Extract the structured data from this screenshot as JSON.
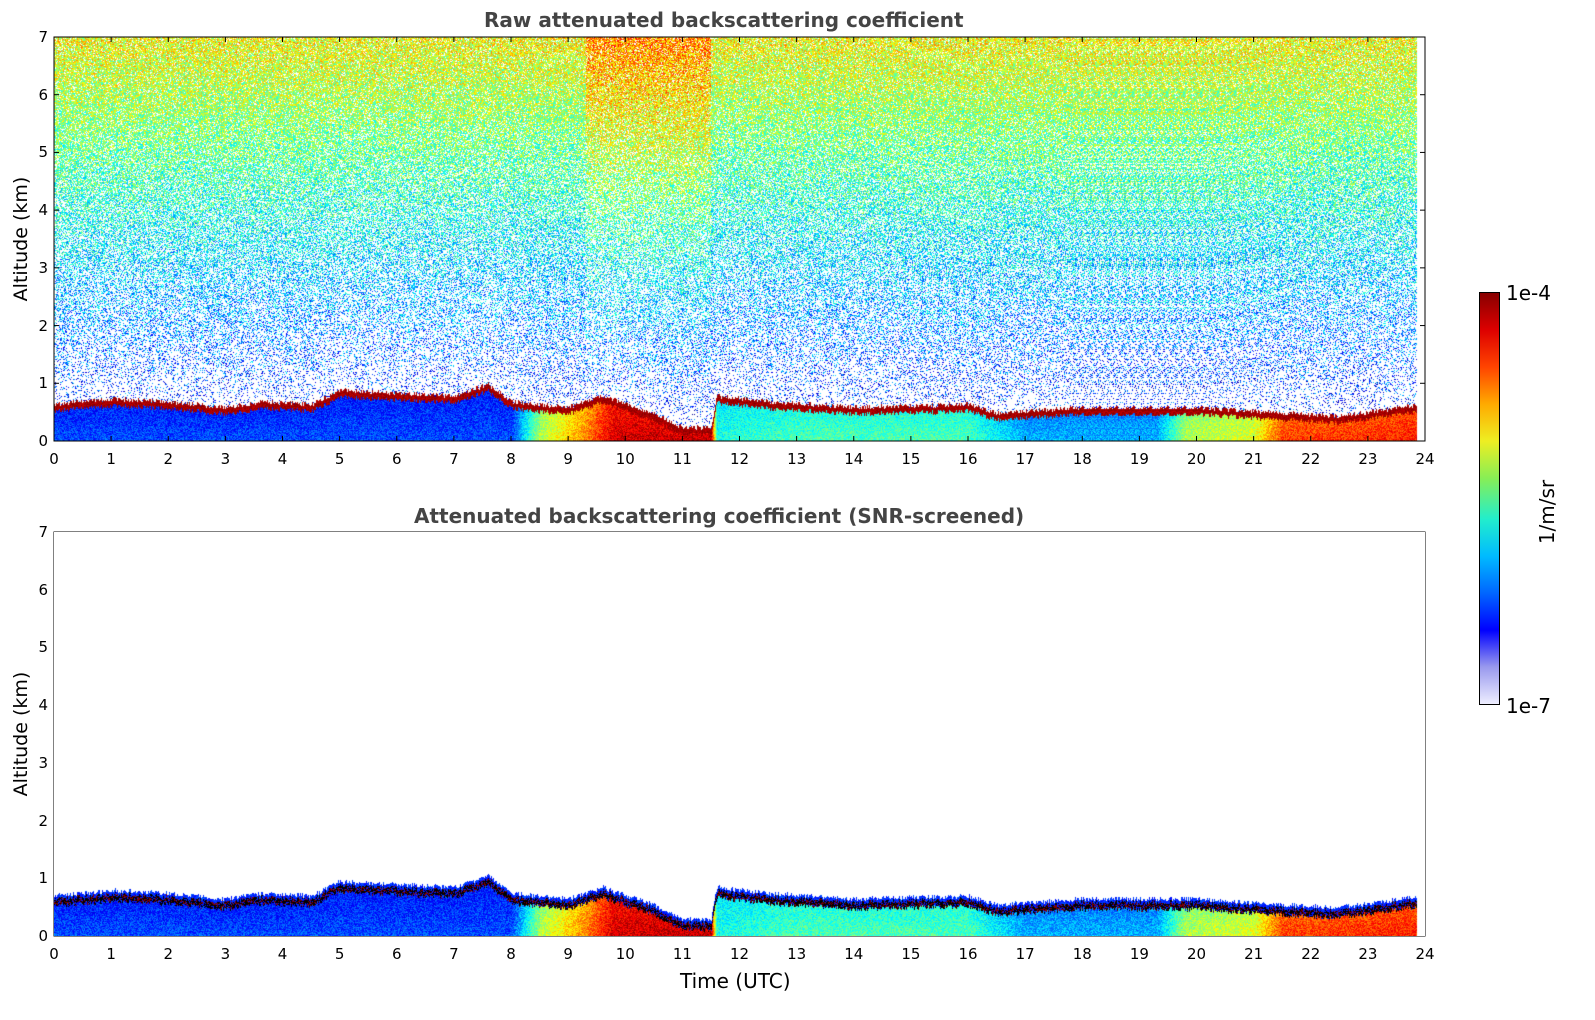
{
  "chart_data": [
    {
      "type": "heatmap",
      "title": "Raw attenuated backscattering coefficient",
      "xlabel": "",
      "ylabel": "Altitude (km)",
      "xlim": [
        0,
        24
      ],
      "ylim": [
        0,
        7
      ],
      "xticks": [
        "0",
        "1",
        "2",
        "3",
        "4",
        "5",
        "6",
        "7",
        "8",
        "9",
        "10",
        "11",
        "12",
        "13",
        "14",
        "15",
        "16",
        "17",
        "18",
        "19",
        "20",
        "21",
        "22",
        "23",
        "24"
      ],
      "yticks": [
        "0",
        "1",
        "2",
        "3",
        "4",
        "5",
        "6",
        "7"
      ],
      "noise": "high",
      "layer_top_km": [
        {
          "t": 0,
          "z": 0.6
        },
        {
          "t": 1,
          "z": 0.7
        },
        {
          "t": 2,
          "z": 0.65
        },
        {
          "t": 3,
          "z": 0.55
        },
        {
          "t": 3.7,
          "z": 0.65
        },
        {
          "t": 4.5,
          "z": 0.6
        },
        {
          "t": 5,
          "z": 0.85
        },
        {
          "t": 6,
          "z": 0.8
        },
        {
          "t": 7,
          "z": 0.75
        },
        {
          "t": 7.6,
          "z": 0.95
        },
        {
          "t": 8,
          "z": 0.65
        },
        {
          "t": 9,
          "z": 0.55
        },
        {
          "t": 9.6,
          "z": 0.75
        },
        {
          "t": 10.5,
          "z": 0.45
        },
        {
          "t": 11,
          "z": 0.2
        },
        {
          "t": 11.5,
          "z": 0.2
        },
        {
          "t": 11.6,
          "z": 0.75
        },
        {
          "t": 12.5,
          "z": 0.65
        },
        {
          "t": 14,
          "z": 0.55
        },
        {
          "t": 16,
          "z": 0.6
        },
        {
          "t": 16.5,
          "z": 0.45
        },
        {
          "t": 18,
          "z": 0.55
        },
        {
          "t": 20,
          "z": 0.55
        },
        {
          "t": 21.5,
          "z": 0.45
        },
        {
          "t": 22.5,
          "z": 0.4
        },
        {
          "t": 23.9,
          "z": 0.6
        }
      ],
      "surface_intensity": [
        {
          "t": 0,
          "v": 0.2
        },
        {
          "t": 8,
          "v": 0.2
        },
        {
          "t": 8.5,
          "v": 0.55
        },
        {
          "t": 9.3,
          "v": 0.75
        },
        {
          "t": 9.8,
          "v": 0.92
        },
        {
          "t": 11.5,
          "v": 0.95
        },
        {
          "t": 11.6,
          "v": 0.4
        },
        {
          "t": 13,
          "v": 0.45
        },
        {
          "t": 16,
          "v": 0.45
        },
        {
          "t": 17,
          "v": 0.3
        },
        {
          "t": 19.3,
          "v": 0.3
        },
        {
          "t": 19.8,
          "v": 0.55
        },
        {
          "t": 21,
          "v": 0.6
        },
        {
          "t": 21.5,
          "v": 0.82
        },
        {
          "t": 23.9,
          "v": 0.85
        }
      ]
    },
    {
      "type": "heatmap",
      "title": "Attenuated backscattering coefficient (SNR-screened)",
      "xlabel": "Time (UTC)",
      "ylabel": "Altitude (km)",
      "xlim": [
        0,
        24
      ],
      "ylim": [
        0,
        7
      ],
      "xticks": [
        "0",
        "1",
        "2",
        "3",
        "4",
        "5",
        "6",
        "7",
        "8",
        "9",
        "10",
        "11",
        "12",
        "13",
        "14",
        "15",
        "16",
        "17",
        "18",
        "19",
        "20",
        "21",
        "22",
        "23",
        "24"
      ],
      "yticks": [
        "0",
        "1",
        "2",
        "3",
        "4",
        "5",
        "6",
        "7"
      ],
      "noise": "screened",
      "layer_top_km": [
        {
          "t": 0,
          "z": 0.6
        },
        {
          "t": 1,
          "z": 0.7
        },
        {
          "t": 2,
          "z": 0.65
        },
        {
          "t": 3,
          "z": 0.55
        },
        {
          "t": 3.7,
          "z": 0.65
        },
        {
          "t": 4.5,
          "z": 0.6
        },
        {
          "t": 5,
          "z": 0.85
        },
        {
          "t": 6,
          "z": 0.8
        },
        {
          "t": 7,
          "z": 0.75
        },
        {
          "t": 7.6,
          "z": 0.95
        },
        {
          "t": 8,
          "z": 0.65
        },
        {
          "t": 9,
          "z": 0.55
        },
        {
          "t": 9.6,
          "z": 0.75
        },
        {
          "t": 10.5,
          "z": 0.45
        },
        {
          "t": 11,
          "z": 0.2
        },
        {
          "t": 11.5,
          "z": 0.2
        },
        {
          "t": 11.6,
          "z": 0.75
        },
        {
          "t": 12.5,
          "z": 0.65
        },
        {
          "t": 14,
          "z": 0.55
        },
        {
          "t": 16,
          "z": 0.6
        },
        {
          "t": 16.5,
          "z": 0.45
        },
        {
          "t": 18,
          "z": 0.55
        },
        {
          "t": 20,
          "z": 0.55
        },
        {
          "t": 21.5,
          "z": 0.45
        },
        {
          "t": 22.5,
          "z": 0.4
        },
        {
          "t": 23.9,
          "z": 0.6
        }
      ],
      "surface_intensity": [
        {
          "t": 0,
          "v": 0.2
        },
        {
          "t": 8,
          "v": 0.2
        },
        {
          "t": 8.5,
          "v": 0.55
        },
        {
          "t": 9.3,
          "v": 0.75
        },
        {
          "t": 9.8,
          "v": 0.92
        },
        {
          "t": 11.5,
          "v": 0.95
        },
        {
          "t": 11.6,
          "v": 0.4
        },
        {
          "t": 13,
          "v": 0.45
        },
        {
          "t": 16,
          "v": 0.45
        },
        {
          "t": 17,
          "v": 0.3
        },
        {
          "t": 19.3,
          "v": 0.3
        },
        {
          "t": 19.8,
          "v": 0.55
        },
        {
          "t": 21,
          "v": 0.6
        },
        {
          "t": 21.5,
          "v": 0.82
        },
        {
          "t": 23.9,
          "v": 0.85
        }
      ]
    }
  ],
  "colorbar": {
    "max_label": "1e-4",
    "min_label": "1e-7",
    "unit": "1/m/sr",
    "scale": "log",
    "colors": [
      "#eeeeff",
      "#9999ee",
      "#0000ff",
      "#0066ff",
      "#00bbff",
      "#22eecc",
      "#88ee55",
      "#eeee22",
      "#ffaa00",
      "#ff4400",
      "#dd0000",
      "#880000"
    ]
  }
}
